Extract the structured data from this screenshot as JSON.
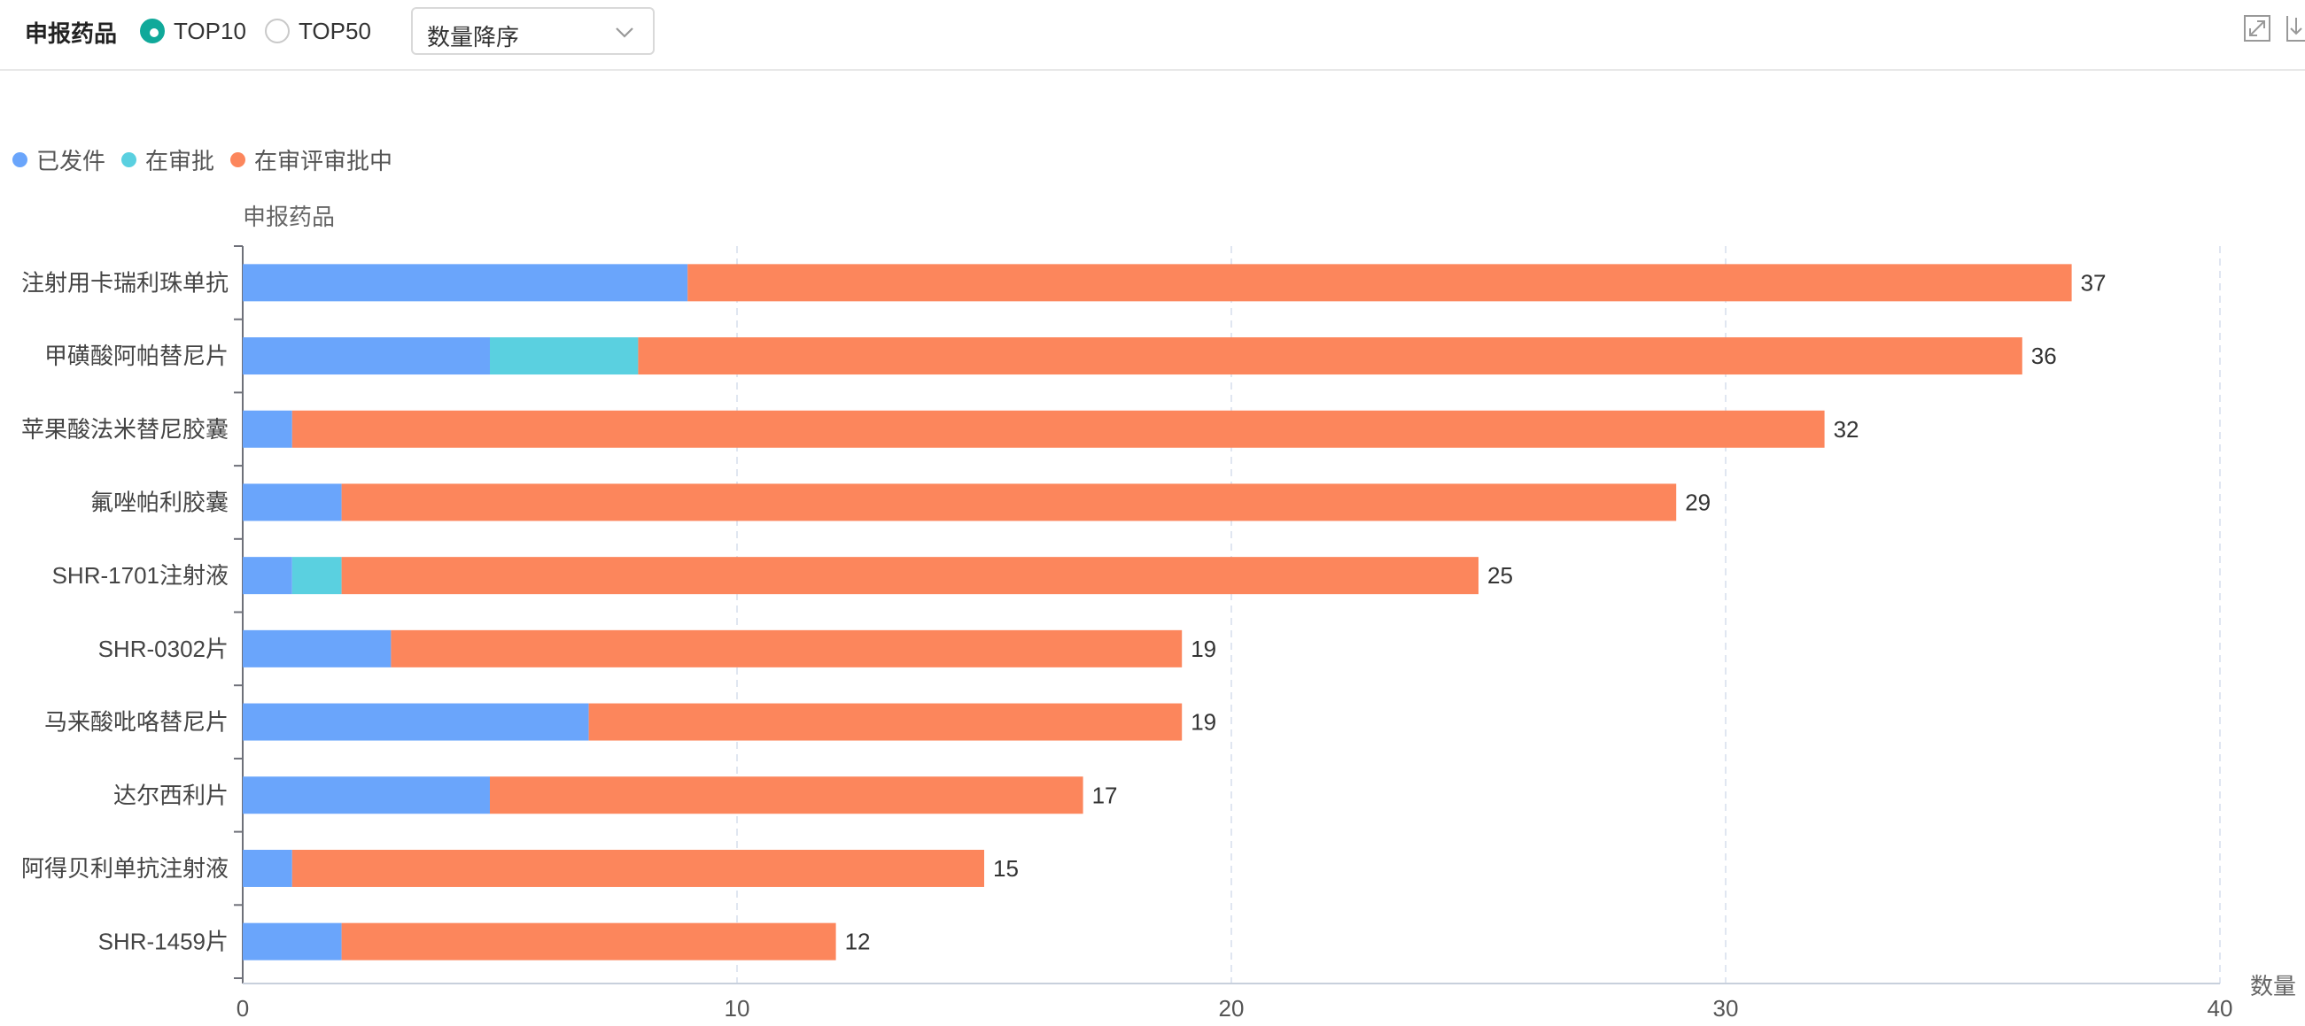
{
  "toolbar": {
    "title": "申报药品",
    "radios": [
      {
        "label": "TOP10",
        "checked": true
      },
      {
        "label": "TOP50",
        "checked": false
      }
    ],
    "sort_select": {
      "value": "数量降序"
    }
  },
  "colors": {
    "accent": "#10a99a",
    "issued": "#6aa5fb",
    "approving": "#5ad0e0",
    "reviewing": "#fc865c"
  },
  "chart_data": {
    "type": "bar",
    "orientation": "horizontal",
    "stacked": true,
    "categories": [
      "注射用卡瑞利珠单抗",
      "甲磺酸阿帕替尼片",
      "苹果酸法米替尼胶囊",
      "氟唑帕利胶囊",
      "SHR-1701注射液",
      "SHR-0302片",
      "马来酸吡咯替尼片",
      "达尔西利片",
      "阿得贝利单抗注射液",
      "SHR-1459片"
    ],
    "series": [
      {
        "name": "已发件",
        "color": "#6aa5fb",
        "values": [
          9,
          5,
          1,
          2,
          1,
          3,
          7,
          5,
          1,
          2
        ]
      },
      {
        "name": "在审批",
        "color": "#5ad0e0",
        "values": [
          0,
          3,
          0,
          0,
          1,
          0,
          0,
          0,
          0,
          0
        ]
      },
      {
        "name": "在审评审批中",
        "color": "#fc865c",
        "values": [
          28,
          28,
          31,
          27,
          23,
          16,
          12,
          12,
          14,
          10
        ]
      }
    ],
    "totals": [
      37,
      36,
      32,
      29,
      25,
      19,
      19,
      17,
      15,
      12
    ],
    "xlabel": "数量",
    "ylabel": "申报药品",
    "xlim": [
      0,
      40
    ],
    "xticks": [
      0,
      10,
      20,
      30,
      40
    ],
    "grid": "vertical-dashed",
    "legend": "top-left"
  }
}
